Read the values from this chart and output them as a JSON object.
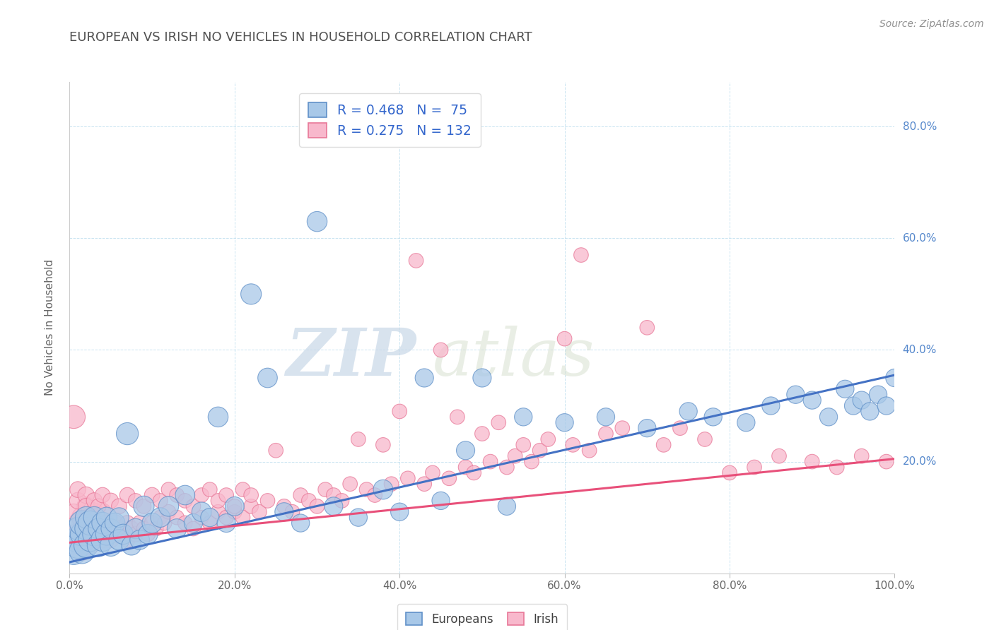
{
  "title": "EUROPEAN VS IRISH NO VEHICLES IN HOUSEHOLD CORRELATION CHART",
  "source_text": "Source: ZipAtlas.com",
  "ylabel": "No Vehicles in Household",
  "xlim": [
    0.0,
    1.0
  ],
  "ylim": [
    0.0,
    0.88
  ],
  "xticks": [
    0.0,
    0.2,
    0.4,
    0.6,
    0.8,
    1.0
  ],
  "xticklabels": [
    "0.0%",
    "20.0%",
    "40.0%",
    "60.0%",
    "80.0%",
    "100.0%"
  ],
  "yticks": [
    0.2,
    0.4,
    0.6,
    0.8
  ],
  "yticklabels": [
    "20.0%",
    "40.0%",
    "60.0%",
    "80.0%"
  ],
  "blue_fill": "#A8C8E8",
  "pink_fill": "#F8B8CC",
  "blue_edge": "#6090C8",
  "pink_edge": "#E87898",
  "blue_line": "#4472C4",
  "pink_line": "#E8507A",
  "title_color": "#505050",
  "source_color": "#909090",
  "yaxis_color": "#5588CC",
  "legend_text_color": "#404040",
  "legend_rn_color": "#3366CC",
  "R_blue": 0.468,
  "N_blue": 75,
  "R_pink": 0.275,
  "N_pink": 132,
  "watermark_zip": "ZIP",
  "watermark_atlas": "atlas",
  "blue_trend_x0": 0.0,
  "blue_trend_y0": 0.02,
  "blue_trend_x1": 1.0,
  "blue_trend_y1": 0.355,
  "pink_trend_x0": 0.0,
  "pink_trend_y0": 0.055,
  "pink_trend_x1": 1.0,
  "pink_trend_y1": 0.205,
  "blue_x": [
    0.005,
    0.008,
    0.01,
    0.01,
    0.015,
    0.015,
    0.015,
    0.02,
    0.02,
    0.02,
    0.025,
    0.025,
    0.03,
    0.03,
    0.035,
    0.035,
    0.04,
    0.04,
    0.045,
    0.045,
    0.05,
    0.05,
    0.055,
    0.06,
    0.06,
    0.065,
    0.07,
    0.075,
    0.08,
    0.085,
    0.09,
    0.095,
    0.1,
    0.11,
    0.12,
    0.13,
    0.14,
    0.15,
    0.16,
    0.17,
    0.18,
    0.19,
    0.2,
    0.22,
    0.24,
    0.26,
    0.28,
    0.3,
    0.32,
    0.35,
    0.38,
    0.4,
    0.43,
    0.45,
    0.48,
    0.5,
    0.53,
    0.55,
    0.6,
    0.65,
    0.7,
    0.75,
    0.78,
    0.82,
    0.85,
    0.88,
    0.9,
    0.92,
    0.94,
    0.95,
    0.96,
    0.97,
    0.98,
    0.99,
    1.0
  ],
  "blue_y": [
    0.04,
    0.06,
    0.05,
    0.08,
    0.04,
    0.07,
    0.09,
    0.05,
    0.08,
    0.1,
    0.06,
    0.09,
    0.07,
    0.1,
    0.05,
    0.08,
    0.06,
    0.09,
    0.07,
    0.1,
    0.05,
    0.08,
    0.09,
    0.06,
    0.1,
    0.07,
    0.25,
    0.05,
    0.08,
    0.06,
    0.12,
    0.07,
    0.09,
    0.1,
    0.12,
    0.08,
    0.14,
    0.09,
    0.11,
    0.1,
    0.28,
    0.09,
    0.12,
    0.5,
    0.35,
    0.11,
    0.09,
    0.63,
    0.12,
    0.1,
    0.15,
    0.11,
    0.35,
    0.13,
    0.22,
    0.35,
    0.12,
    0.28,
    0.27,
    0.28,
    0.26,
    0.29,
    0.28,
    0.27,
    0.3,
    0.32,
    0.31,
    0.28,
    0.33,
    0.3,
    0.31,
    0.29,
    0.32,
    0.3,
    0.35
  ],
  "blue_s": [
    350,
    280,
    320,
    240,
    300,
    260,
    290,
    280,
    240,
    220,
    260,
    280,
    260,
    220,
    240,
    200,
    250,
    220,
    230,
    200,
    220,
    180,
    190,
    200,
    180,
    190,
    230,
    180,
    190,
    180,
    200,
    180,
    190,
    180,
    190,
    180,
    180,
    160,
    180,
    160,
    190,
    160,
    170,
    200,
    180,
    160,
    150,
    190,
    160,
    150,
    180,
    150,
    160,
    150,
    160,
    160,
    150,
    150,
    150,
    150,
    150,
    150,
    150,
    150,
    150,
    150,
    150,
    150,
    150,
    150,
    150,
    150,
    150,
    150,
    150
  ],
  "pink_x": [
    0.005,
    0.008,
    0.01,
    0.01,
    0.012,
    0.015,
    0.015,
    0.015,
    0.018,
    0.02,
    0.02,
    0.02,
    0.025,
    0.025,
    0.025,
    0.03,
    0.03,
    0.03,
    0.035,
    0.035,
    0.04,
    0.04,
    0.04,
    0.045,
    0.045,
    0.05,
    0.05,
    0.055,
    0.055,
    0.06,
    0.065,
    0.07,
    0.07,
    0.075,
    0.08,
    0.085,
    0.09,
    0.095,
    0.1,
    0.105,
    0.11,
    0.115,
    0.12,
    0.13,
    0.14,
    0.15,
    0.16,
    0.17,
    0.18,
    0.19,
    0.2,
    0.21,
    0.22,
    0.23,
    0.24,
    0.25,
    0.26,
    0.27,
    0.28,
    0.29,
    0.3,
    0.31,
    0.32,
    0.33,
    0.34,
    0.35,
    0.36,
    0.37,
    0.38,
    0.39,
    0.4,
    0.41,
    0.42,
    0.43,
    0.44,
    0.45,
    0.46,
    0.47,
    0.48,
    0.49,
    0.5,
    0.51,
    0.52,
    0.53,
    0.54,
    0.55,
    0.56,
    0.57,
    0.58,
    0.6,
    0.61,
    0.62,
    0.63,
    0.65,
    0.67,
    0.7,
    0.72,
    0.74,
    0.77,
    0.8,
    0.83,
    0.86,
    0.9,
    0.93,
    0.96,
    0.99,
    0.005,
    0.01,
    0.01,
    0.02,
    0.02,
    0.03,
    0.035,
    0.04,
    0.05,
    0.06,
    0.07,
    0.08,
    0.09,
    0.1,
    0.11,
    0.12,
    0.13,
    0.14,
    0.15,
    0.16,
    0.17,
    0.18,
    0.19,
    0.2,
    0.21,
    0.22
  ],
  "pink_y": [
    0.28,
    0.07,
    0.06,
    0.09,
    0.05,
    0.07,
    0.04,
    0.1,
    0.08,
    0.06,
    0.09,
    0.12,
    0.07,
    0.05,
    0.1,
    0.08,
    0.06,
    0.11,
    0.09,
    0.07,
    0.08,
    0.06,
    0.11,
    0.09,
    0.07,
    0.08,
    0.06,
    0.09,
    0.07,
    0.08,
    0.07,
    0.09,
    0.06,
    0.08,
    0.07,
    0.09,
    0.08,
    0.07,
    0.09,
    0.08,
    0.1,
    0.09,
    0.11,
    0.1,
    0.09,
    0.08,
    0.1,
    0.09,
    0.11,
    0.1,
    0.11,
    0.1,
    0.12,
    0.11,
    0.13,
    0.22,
    0.12,
    0.11,
    0.14,
    0.13,
    0.12,
    0.15,
    0.14,
    0.13,
    0.16,
    0.24,
    0.15,
    0.14,
    0.23,
    0.16,
    0.29,
    0.17,
    0.56,
    0.16,
    0.18,
    0.4,
    0.17,
    0.28,
    0.19,
    0.18,
    0.25,
    0.2,
    0.27,
    0.19,
    0.21,
    0.23,
    0.2,
    0.22,
    0.24,
    0.42,
    0.23,
    0.57,
    0.22,
    0.25,
    0.26,
    0.44,
    0.23,
    0.26,
    0.24,
    0.18,
    0.19,
    0.21,
    0.2,
    0.19,
    0.21,
    0.2,
    0.11,
    0.13,
    0.15,
    0.14,
    0.12,
    0.13,
    0.12,
    0.14,
    0.13,
    0.12,
    0.14,
    0.13,
    0.12,
    0.14,
    0.13,
    0.15,
    0.14,
    0.13,
    0.12,
    0.14,
    0.15,
    0.13,
    0.14,
    0.12,
    0.15,
    0.14
  ],
  "pink_s": [
    250,
    200,
    220,
    180,
    160,
    190,
    170,
    200,
    180,
    160,
    180,
    160,
    170,
    150,
    160,
    150,
    140,
    150,
    140,
    130,
    140,
    130,
    140,
    130,
    120,
    130,
    120,
    130,
    120,
    120,
    120,
    110,
    110,
    110,
    110,
    110,
    100,
    100,
    110,
    100,
    100,
    100,
    100,
    100,
    100,
    100,
    100,
    100,
    100,
    100,
    100,
    100,
    100,
    100,
    100,
    100,
    100,
    100,
    100,
    100,
    100,
    100,
    100,
    100,
    100,
    100,
    100,
    100,
    100,
    100,
    100,
    100,
    100,
    100,
    100,
    100,
    100,
    100,
    100,
    100,
    100,
    100,
    100,
    100,
    100,
    100,
    100,
    100,
    100,
    100,
    100,
    100,
    100,
    100,
    100,
    100,
    100,
    100,
    100,
    100,
    100,
    100,
    100,
    100,
    100,
    100,
    120,
    130,
    120,
    130,
    120,
    120,
    110,
    110,
    110,
    110,
    110,
    100,
    100,
    110,
    100,
    100,
    100,
    100,
    100,
    100,
    100,
    100,
    100,
    100,
    100,
    100
  ]
}
